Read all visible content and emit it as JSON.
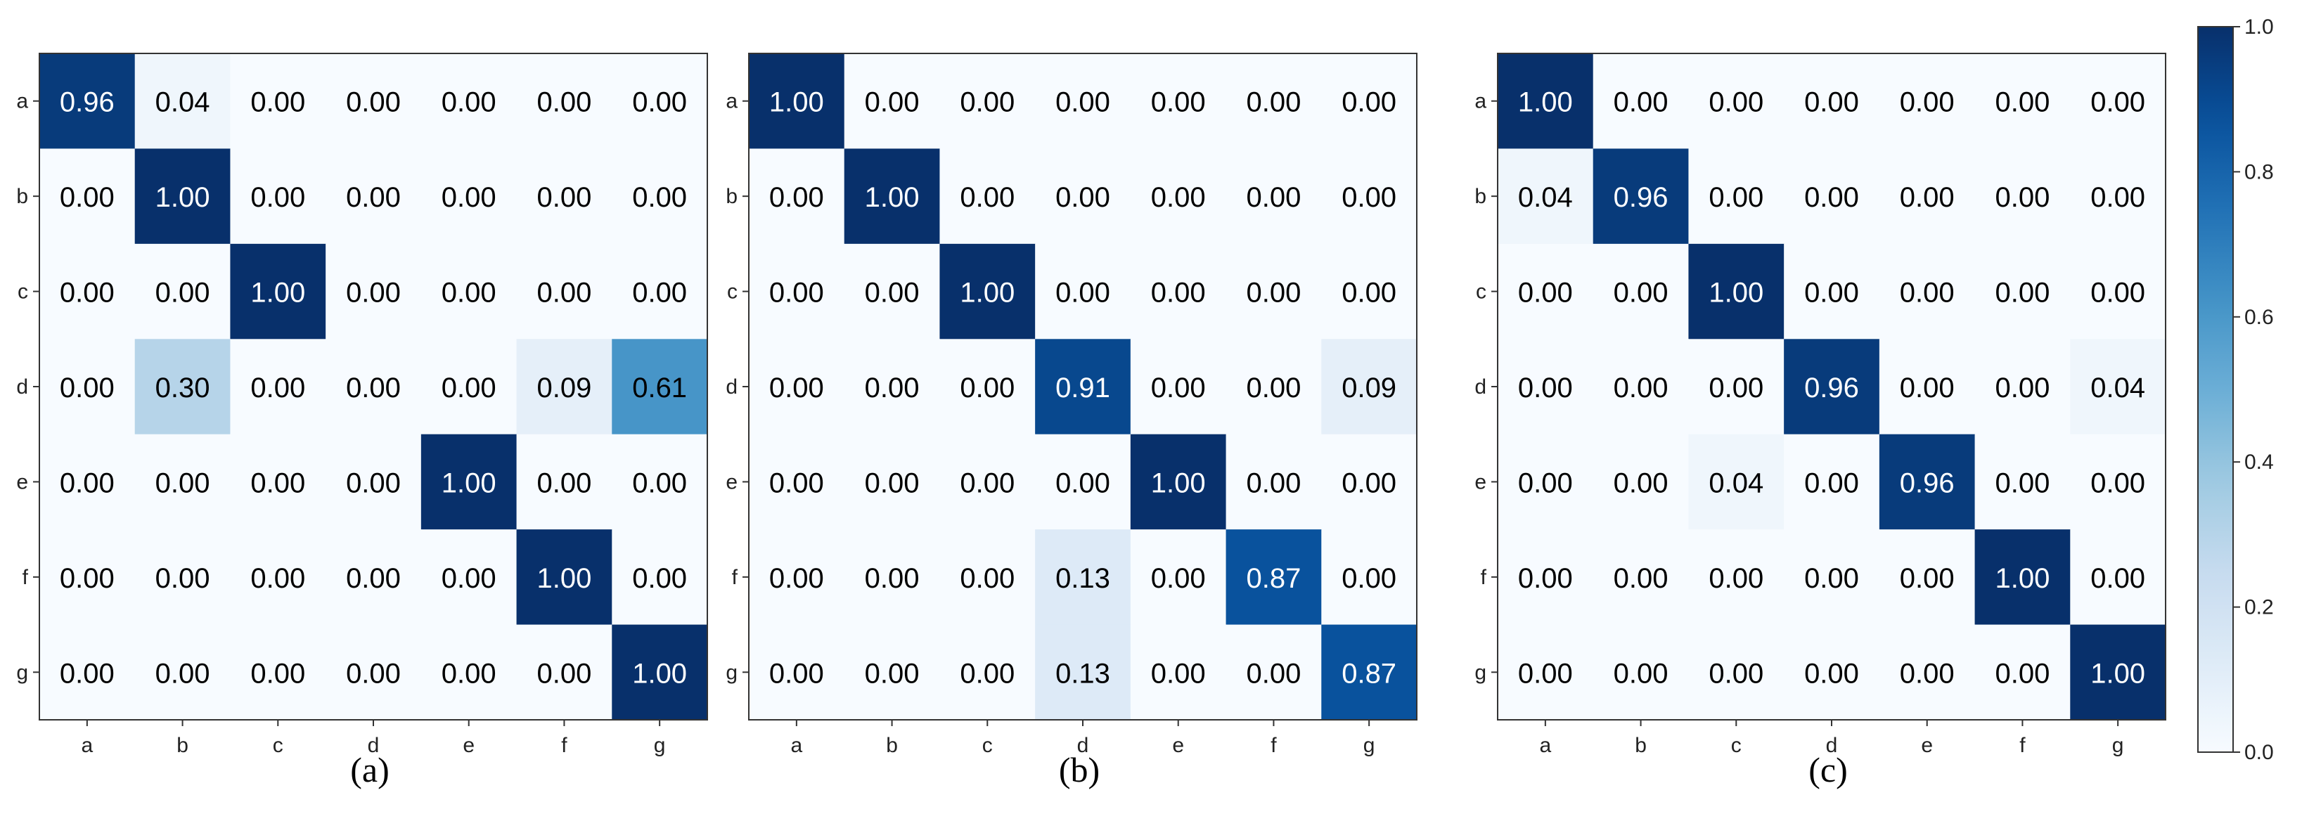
{
  "chart_data": [
    {
      "type": "heatmap",
      "caption": "(a)",
      "x_categories": [
        "a",
        "b",
        "c",
        "d",
        "e",
        "f",
        "g"
      ],
      "y_categories": [
        "a",
        "b",
        "c",
        "d",
        "e",
        "f",
        "g"
      ],
      "values": [
        [
          0.96,
          0.04,
          0.0,
          0.0,
          0.0,
          0.0,
          0.0
        ],
        [
          0.0,
          1.0,
          0.0,
          0.0,
          0.0,
          0.0,
          0.0
        ],
        [
          0.0,
          0.0,
          1.0,
          0.0,
          0.0,
          0.0,
          0.0
        ],
        [
          0.0,
          0.3,
          0.0,
          0.0,
          0.0,
          0.09,
          0.61
        ],
        [
          0.0,
          0.0,
          0.0,
          0.0,
          1.0,
          0.0,
          0.0
        ],
        [
          0.0,
          0.0,
          0.0,
          0.0,
          0.0,
          1.0,
          0.0
        ],
        [
          0.0,
          0.0,
          0.0,
          0.0,
          0.0,
          0.0,
          1.0
        ]
      ]
    },
    {
      "type": "heatmap",
      "caption": "(b)",
      "x_categories": [
        "a",
        "b",
        "c",
        "d",
        "e",
        "f",
        "g"
      ],
      "y_categories": [
        "a",
        "b",
        "c",
        "d",
        "e",
        "f",
        "g"
      ],
      "values": [
        [
          1.0,
          0.0,
          0.0,
          0.0,
          0.0,
          0.0,
          0.0
        ],
        [
          0.0,
          1.0,
          0.0,
          0.0,
          0.0,
          0.0,
          0.0
        ],
        [
          0.0,
          0.0,
          1.0,
          0.0,
          0.0,
          0.0,
          0.0
        ],
        [
          0.0,
          0.0,
          0.0,
          0.91,
          0.0,
          0.0,
          0.09
        ],
        [
          0.0,
          0.0,
          0.0,
          0.0,
          1.0,
          0.0,
          0.0
        ],
        [
          0.0,
          0.0,
          0.0,
          0.13,
          0.0,
          0.87,
          0.0
        ],
        [
          0.0,
          0.0,
          0.0,
          0.13,
          0.0,
          0.0,
          0.87
        ]
      ]
    },
    {
      "type": "heatmap",
      "caption": "(c)",
      "x_categories": [
        "a",
        "b",
        "c",
        "d",
        "e",
        "f",
        "g"
      ],
      "y_categories": [
        "a",
        "b",
        "c",
        "d",
        "e",
        "f",
        "g"
      ],
      "values": [
        [
          1.0,
          0.0,
          0.0,
          0.0,
          0.0,
          0.0,
          0.0
        ],
        [
          0.04,
          0.96,
          0.0,
          0.0,
          0.0,
          0.0,
          0.0
        ],
        [
          0.0,
          0.0,
          1.0,
          0.0,
          0.0,
          0.0,
          0.0
        ],
        [
          0.0,
          0.0,
          0.0,
          0.96,
          0.0,
          0.0,
          0.04
        ],
        [
          0.0,
          0.0,
          0.04,
          0.0,
          0.96,
          0.0,
          0.0
        ],
        [
          0.0,
          0.0,
          0.0,
          0.0,
          0.0,
          1.0,
          0.0
        ],
        [
          0.0,
          0.0,
          0.0,
          0.0,
          0.0,
          0.0,
          1.0
        ]
      ]
    }
  ],
  "colorbar": {
    "range": [
      0.0,
      1.0
    ],
    "ticks": [
      "0.0",
      "0.2",
      "0.4",
      "0.6",
      "0.8",
      "1.0"
    ],
    "colormap": "Blues",
    "color_low": "#f7fbff",
    "color_high": "#08306b"
  }
}
